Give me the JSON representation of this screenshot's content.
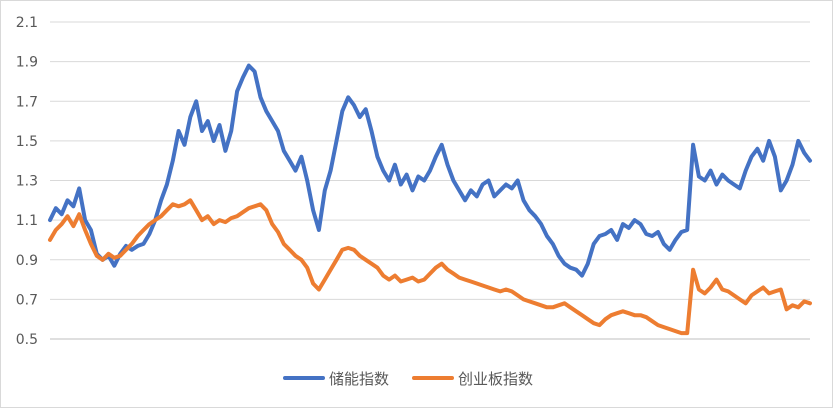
{
  "chart_data": {
    "type": "line",
    "title": "",
    "xlabel": "",
    "ylabel": "",
    "ylim": [
      0.5,
      2.1
    ],
    "yticks": [
      "0.5",
      "0.7",
      "0.9",
      "1.1",
      "1.3",
      "1.5",
      "1.7",
      "1.9",
      "2.1"
    ],
    "grid": true,
    "legend_position": "bottom",
    "series": [
      {
        "name": "储能指数",
        "color": "#4472C4",
        "values": [
          1.1,
          1.16,
          1.13,
          1.2,
          1.17,
          1.26,
          1.1,
          1.05,
          0.93,
          0.9,
          0.92,
          0.87,
          0.93,
          0.97,
          0.95,
          0.97,
          0.98,
          1.03,
          1.1,
          1.2,
          1.28,
          1.4,
          1.55,
          1.48,
          1.62,
          1.7,
          1.55,
          1.6,
          1.5,
          1.58,
          1.45,
          1.55,
          1.75,
          1.82,
          1.88,
          1.85,
          1.72,
          1.65,
          1.6,
          1.55,
          1.45,
          1.4,
          1.35,
          1.42,
          1.3,
          1.15,
          1.05,
          1.25,
          1.35,
          1.5,
          1.65,
          1.72,
          1.68,
          1.62,
          1.66,
          1.55,
          1.42,
          1.35,
          1.3,
          1.38,
          1.28,
          1.33,
          1.25,
          1.32,
          1.3,
          1.35,
          1.42,
          1.48,
          1.38,
          1.3,
          1.25,
          1.2,
          1.25,
          1.22,
          1.28,
          1.3,
          1.22,
          1.25,
          1.28,
          1.26,
          1.3,
          1.2,
          1.15,
          1.12,
          1.08,
          1.02,
          0.98,
          0.92,
          0.88,
          0.86,
          0.85,
          0.82,
          0.88,
          0.98,
          1.02,
          1.03,
          1.05,
          1.0,
          1.08,
          1.06,
          1.1,
          1.08,
          1.03,
          1.02,
          1.04,
          0.98,
          0.95,
          1.0,
          1.04,
          1.05,
          1.48,
          1.32,
          1.3,
          1.35,
          1.28,
          1.33,
          1.3,
          1.28,
          1.26,
          1.35,
          1.42,
          1.46,
          1.4,
          1.5,
          1.42,
          1.25,
          1.3,
          1.38,
          1.5,
          1.44,
          1.4
        ]
      },
      {
        "name": "创业板指数",
        "color": "#ED7D31",
        "values": [
          1.0,
          1.05,
          1.08,
          1.12,
          1.07,
          1.13,
          1.05,
          0.98,
          0.92,
          0.9,
          0.93,
          0.91,
          0.92,
          0.95,
          0.98,
          1.02,
          1.05,
          1.08,
          1.1,
          1.12,
          1.15,
          1.18,
          1.17,
          1.18,
          1.2,
          1.15,
          1.1,
          1.12,
          1.08,
          1.1,
          1.09,
          1.11,
          1.12,
          1.14,
          1.16,
          1.17,
          1.18,
          1.15,
          1.08,
          1.04,
          0.98,
          0.95,
          0.92,
          0.9,
          0.86,
          0.78,
          0.75,
          0.8,
          0.85,
          0.9,
          0.95,
          0.96,
          0.95,
          0.92,
          0.9,
          0.88,
          0.86,
          0.82,
          0.8,
          0.82,
          0.79,
          0.8,
          0.81,
          0.79,
          0.8,
          0.83,
          0.86,
          0.88,
          0.85,
          0.83,
          0.81,
          0.8,
          0.79,
          0.78,
          0.77,
          0.76,
          0.75,
          0.74,
          0.75,
          0.74,
          0.72,
          0.7,
          0.69,
          0.68,
          0.67,
          0.66,
          0.66,
          0.67,
          0.68,
          0.66,
          0.64,
          0.62,
          0.6,
          0.58,
          0.57,
          0.6,
          0.62,
          0.63,
          0.64,
          0.63,
          0.62,
          0.62,
          0.61,
          0.59,
          0.57,
          0.56,
          0.55,
          0.54,
          0.53,
          0.53,
          0.85,
          0.75,
          0.73,
          0.76,
          0.8,
          0.75,
          0.74,
          0.72,
          0.7,
          0.68,
          0.72,
          0.74,
          0.76,
          0.73,
          0.74,
          0.75,
          0.65,
          0.67,
          0.66,
          0.69,
          0.68
        ]
      }
    ]
  }
}
